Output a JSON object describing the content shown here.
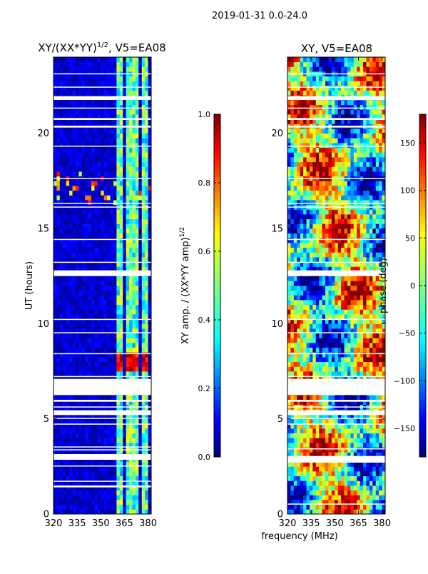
{
  "figure": {
    "suptitle": "2019-01-31 0.0-24.0",
    "xlabel": "frequency (MHz)"
  },
  "colors": {
    "jet": [
      "#00007f",
      "#0000ff",
      "#007fff",
      "#00ffff",
      "#7fff7f",
      "#ffff00",
      "#ff7f00",
      "#ff0000",
      "#7f0000"
    ]
  },
  "chart_data": [
    {
      "type": "heatmap",
      "title_main": "XY/(XX*YY)",
      "title_exp": "1/2",
      "title_rest": ", V5=EA08",
      "xlabel": "frequency (MHz)",
      "ylabel": "UT (hours)",
      "xlim": [
        320,
        382
      ],
      "ylim": [
        0,
        24
      ],
      "xticks": [
        "320",
        "335",
        "350",
        "365",
        "380"
      ],
      "xtick_values": [
        320,
        335,
        350,
        365,
        380
      ],
      "yticks": [
        "0",
        "5",
        "10",
        "15",
        "20"
      ],
      "ytick_values": [
        0,
        5,
        10,
        15,
        20
      ],
      "colorbar": {
        "label_main": "XY amp. / (XX*YY amp)",
        "label_exp": "1/2",
        "range": [
          0.0,
          1.0
        ],
        "ticks": [
          "0.0",
          "0.2",
          "0.4",
          "0.6",
          "0.8",
          "1.0"
        ],
        "tick_values": [
          0.0,
          0.2,
          0.4,
          0.6,
          0.8,
          1.0
        ]
      },
      "flagged_time_ranges_hours": [
        [
          1.4,
          1.5
        ],
        [
          1.7,
          1.75
        ],
        [
          2.5,
          2.55
        ],
        [
          2.85,
          3.15
        ],
        [
          3.35,
          3.4
        ],
        [
          3.5,
          3.55
        ],
        [
          4.7,
          4.75
        ],
        [
          5.0,
          5.05
        ],
        [
          5.2,
          5.45
        ],
        [
          5.6,
          5.65
        ],
        [
          5.9,
          6.0
        ],
        [
          6.25,
          7.1
        ],
        [
          7.2,
          7.25
        ],
        [
          8.4,
          8.45
        ],
        [
          9.5,
          9.55
        ],
        [
          10.2,
          10.25
        ],
        [
          12.5,
          12.8
        ],
        [
          13.2,
          13.25
        ],
        [
          14.4,
          14.45
        ],
        [
          16.1,
          16.15
        ],
        [
          16.3,
          16.35
        ],
        [
          17.6,
          17.65
        ],
        [
          19.3,
          19.35
        ],
        [
          20.3,
          20.4
        ],
        [
          20.7,
          20.8
        ],
        [
          21.3,
          21.35
        ],
        [
          21.75,
          21.95
        ],
        [
          22.4,
          22.45
        ],
        [
          23.1,
          23.15
        ]
      ],
      "active_channel_ranges_mhz": [
        [
          360,
          365
        ],
        [
          366,
          370
        ],
        [
          371,
          375
        ],
        [
          376,
          381
        ]
      ],
      "bright_time_range_hours": [
        7.4,
        8.4
      ]
    },
    {
      "type": "heatmap",
      "title_main": "XY, V5=EA08",
      "xlabel": "frequency (MHz)",
      "ylabel": "",
      "xlim": [
        320,
        382
      ],
      "ylim": [
        0,
        24
      ],
      "xticks": [
        "320",
        "335",
        "350",
        "365",
        "380"
      ],
      "xtick_values": [
        320,
        335,
        350,
        365,
        380
      ],
      "yticks": [
        "0",
        "5",
        "10",
        "15",
        "20"
      ],
      "ytick_values": [
        0,
        5,
        10,
        15,
        20
      ],
      "colorbar": {
        "label_main": "phase (deg)",
        "range": [
          -180,
          180
        ],
        "ticks": [
          "−150",
          "−100",
          "−50",
          "0",
          "50",
          "100",
          "150"
        ],
        "tick_values": [
          -150,
          -100,
          -50,
          0,
          50,
          100,
          150
        ]
      },
      "flagged_time_ranges_hours": [
        [
          0.5,
          0.55
        ],
        [
          2.7,
          3.05
        ],
        [
          3.4,
          3.45
        ],
        [
          4.7,
          4.75
        ],
        [
          5.0,
          5.05
        ],
        [
          5.2,
          5.45
        ],
        [
          5.6,
          5.65
        ],
        [
          5.9,
          6.0
        ],
        [
          6.25,
          7.1
        ],
        [
          7.2,
          7.25
        ],
        [
          8.4,
          8.45
        ],
        [
          9.5,
          9.55
        ],
        [
          10.2,
          10.25
        ],
        [
          12.5,
          12.8
        ],
        [
          13.2,
          13.25
        ],
        [
          14.4,
          14.45
        ],
        [
          16.1,
          16.15
        ],
        [
          16.3,
          16.35
        ],
        [
          17.6,
          17.65
        ],
        [
          19.3,
          19.35
        ],
        [
          20.3,
          20.4
        ],
        [
          20.7,
          20.8
        ],
        [
          21.3,
          21.35
        ],
        [
          21.75,
          21.95
        ],
        [
          22.4,
          22.45
        ],
        [
          23.1,
          23.15
        ]
      ]
    }
  ]
}
